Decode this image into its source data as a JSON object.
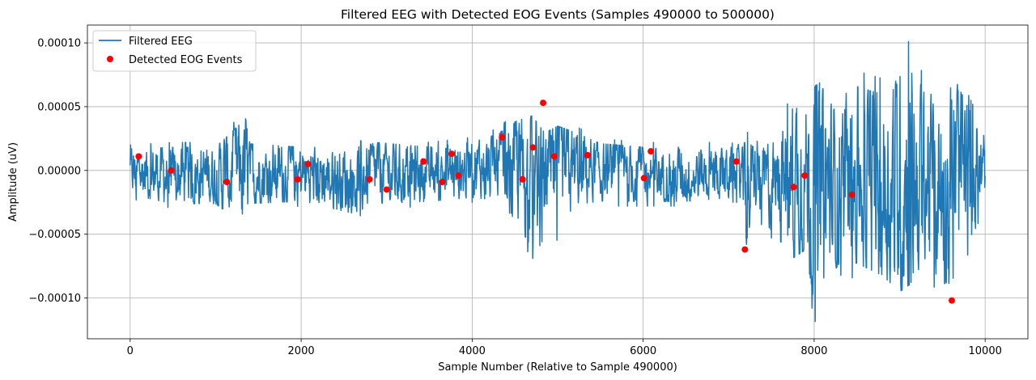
{
  "chart_data": {
    "type": "line",
    "title": "Filtered EEG with Detected EOG Events (Samples 490000 to 500000)",
    "xlabel": "Sample Number (Relative to Sample 490000)",
    "ylabel": "Amplitude (uV)",
    "xlim": [
      -500,
      10500
    ],
    "ylim": [
      -0.000132,
      0.000114
    ],
    "xticks": [
      0,
      2000,
      4000,
      6000,
      8000,
      10000
    ],
    "xtick_labels": [
      "0",
      "2000",
      "4000",
      "6000",
      "8000",
      "10000"
    ],
    "yticks": [
      -0.0001,
      -5e-05,
      0,
      5e-05,
      0.0001
    ],
    "ytick_labels": [
      "−0.00010",
      "−0.00005",
      "0.00000",
      "0.00005",
      "0.00010"
    ],
    "grid": true,
    "legend_position": "top-left",
    "colors": {
      "eeg": "#1f77b4",
      "events": "#ff0000"
    },
    "series": [
      {
        "name": "Filtered EEG",
        "kind": "line",
        "x_start": 0,
        "x_end": 10000,
        "envelope_x": [
          0,
          500,
          1000,
          1350,
          1400,
          2000,
          2600,
          2900,
          3500,
          4000,
          4300,
          4500,
          4700,
          4850,
          5000,
          5200,
          5500,
          6000,
          6500,
          7000,
          7150,
          7200,
          7300,
          7600,
          7750,
          7900,
          8000,
          8300,
          8500,
          8800,
          9000,
          9120,
          9300,
          9500,
          9620,
          9800,
          10000
        ],
        "envelope_upper": [
          2e-05,
          2.2e-05,
          2.2e-05,
          4.8e-05,
          2.5e-05,
          2.2e-05,
          2.2e-05,
          2.6e-05,
          2.2e-05,
          2.6e-05,
          3.3e-05,
          4.5e-05,
          5.2e-05,
          3.6e-05,
          4.2e-05,
          3.5e-05,
          2.5e-05,
          2.2e-05,
          2.2e-05,
          2.2e-05,
          2e-05,
          3.2e-05,
          2.2e-05,
          3e-05,
          6.8e-05,
          6e-05,
          9.2e-05,
          5e-05,
          7.8e-05,
          7.2e-05,
          8.8e-05,
          0.000103,
          7e-05,
          7.5e-05,
          9e-05,
          6e-05,
          3e-05
        ],
        "envelope_lower": [
          -2.2e-05,
          -3e-05,
          -3e-05,
          -5.2e-05,
          -3e-05,
          -2.8e-05,
          -3.8e-05,
          -3e-05,
          -2.8e-05,
          -2.5e-05,
          -2.8e-05,
          -4.5e-05,
          -7e-05,
          -5.2e-05,
          -5.5e-05,
          -3.2e-05,
          -2.8e-05,
          -2.8e-05,
          -2.8e-05,
          -2.5e-05,
          -2.5e-05,
          -7.8e-05,
          -3.5e-05,
          -6.2e-05,
          -8e-05,
          -7.2e-05,
          -0.00012,
          -8.2e-05,
          -8.5e-05,
          -9.5e-05,
          -0.00011,
          -0.000105,
          -8e-05,
          -0.000102,
          -0.000103,
          -8.5e-05,
          -3e-05
        ]
      },
      {
        "name": "Detected EOG Events",
        "kind": "scatter",
        "x": [
          100,
          480,
          1130,
          1960,
          2080,
          2800,
          3000,
          3430,
          3650,
          3760,
          3840,
          4350,
          4590,
          4710,
          4830,
          4960,
          5350,
          6010,
          6090,
          7090,
          7190,
          7760,
          7890,
          8440,
          9610
        ],
        "y": [
          1.1e-05,
          0.0,
          -9e-06,
          -7e-06,
          5e-06,
          -7e-06,
          -1.5e-05,
          7e-06,
          -9e-06,
          1.3e-05,
          -4e-06,
          2.6e-05,
          -7e-06,
          1.8e-05,
          5.3e-05,
          1.1e-05,
          1.2e-05,
          -6e-06,
          1.5e-05,
          7e-06,
          -6.2e-05,
          -1.3e-05,
          -4e-06,
          -1.9e-05,
          -0.000102
        ]
      }
    ]
  }
}
